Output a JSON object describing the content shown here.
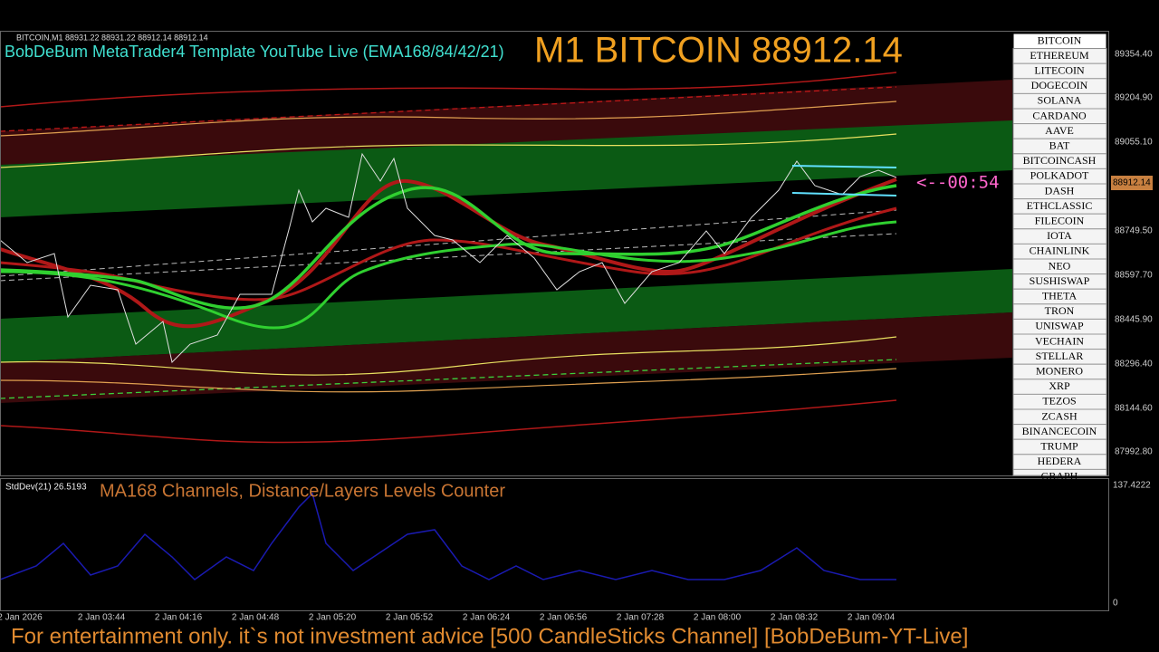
{
  "header": {
    "ohlc": "BITCOIN,M1  88931.22 88931.22 88912.14 88912.14",
    "template": "BobDeBum MetaTrader4 Template YouTube Live (EMA168/84/42/21)",
    "headline": "M1 BITCOIN 88912.14",
    "countdown": "<--00:54"
  },
  "price_axis": {
    "labels": [
      "89354.40",
      "89204.90",
      "89055.10",
      "88749.50",
      "88597.70",
      "88445.90",
      "88296.40",
      "88144.60",
      "87992.80"
    ],
    "current_price": "88912.14"
  },
  "time_axis": {
    "labels": [
      "2 Jan 2026",
      "2 Jan 03:44",
      "2 Jan 04:16",
      "2 Jan 04:48",
      "2 Jan 05:20",
      "2 Jan 05:52",
      "2 Jan 06:24",
      "2 Jan 06:56",
      "2 Jan 07:28",
      "2 Jan 08:00",
      "2 Jan 08:32",
      "2 Jan 09:04"
    ]
  },
  "symbols": [
    "BITCOIN",
    "ETHEREUM",
    "LITECOIN",
    "DOGECOIN",
    "SOLANA",
    "CARDANO",
    "AAVE",
    "BAT",
    "BITCOINCASH",
    "POLKADOT",
    "DASH",
    "ETHCLASSIC",
    "FILECOIN",
    "IOTA",
    "CHAINLINK",
    "NEO",
    "SUSHISWAP",
    "THETA",
    "TRON",
    "UNISWAP",
    "VECHAIN",
    "STELLAR",
    "MONERO",
    "XRP",
    "TEZOS",
    "ZCASH",
    "BINANCECOIN",
    "TRUMP",
    "HEDERA",
    "GRAPH"
  ],
  "indicator": {
    "name": "StdDev(21) 26.5193",
    "caption": "MA168 Channels, Distance/Layers Levels Counter",
    "axis_labels": [
      "137.4222",
      "0"
    ]
  },
  "footer": {
    "disclaimer": "For entertainment only. it`s not investment advice [500 CandleSticks Channel] [BobDeBum-YT-Live]"
  }
}
